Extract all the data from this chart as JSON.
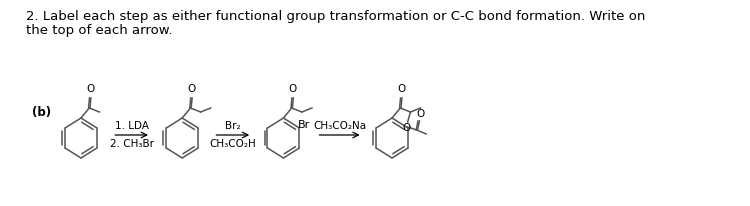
{
  "title_line1": "2. Label each step as either functional group transformation or C-C bond formation. Write on",
  "title_line2": "the top of each arrow.",
  "label_b": "(b)",
  "arrow1_top1": "1. LDA",
  "arrow1_top2": "2. CH₃Br",
  "arrow2_top1": "Br₂",
  "arrow2_top2": "CH₃CO₂H",
  "arrow3_top1": "CH₃CO₂Na",
  "mol3_label": "Br",
  "mol4_o_label": "O",
  "bg_color": "#ffffff",
  "text_color": "#000000",
  "struct_color": "#555555",
  "fontsize_title": 9.5,
  "fontsize_label": 8,
  "fontsize_chem": 7.5
}
